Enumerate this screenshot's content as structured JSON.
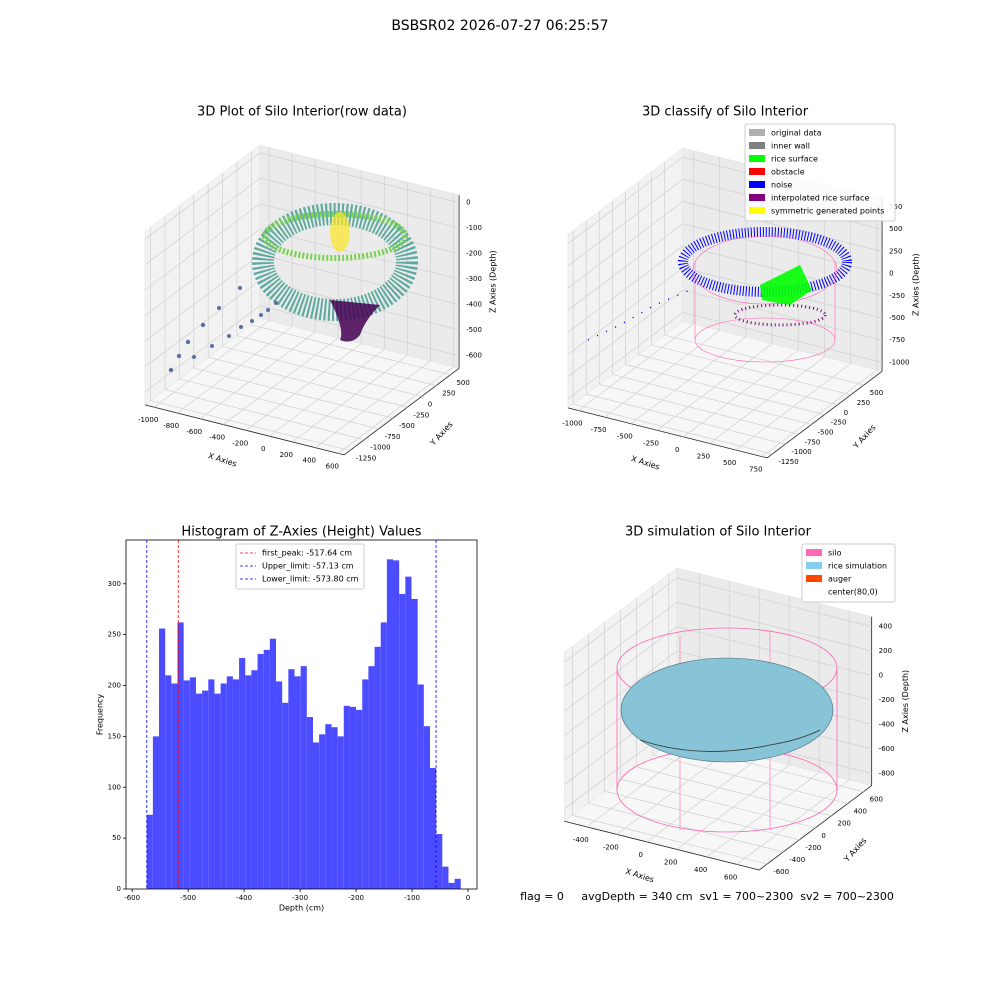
{
  "suptitle": "BSBSR02 2026-07-27 06:25:57",
  "footer": "flag = 0     avgDepth = 340 cm  sv1 = 700~2300  sv2 = 700~2300",
  "chart_data": [
    {
      "type": "scatter3d",
      "title": "3D Plot of Silo Interior(row data)",
      "xlabel": "X Axies",
      "ylabel": "Y Axies",
      "zlabel": "Z Axies (Depth)",
      "xlim": [
        -1080,
        650
      ],
      "xticks": [
        -1000,
        -800,
        -600,
        -400,
        -200,
        0,
        200,
        400,
        600
      ],
      "ylim": [
        -1350,
        650
      ],
      "yticks": [
        -1250,
        -1000,
        -750,
        -500,
        -250,
        0,
        250,
        500
      ],
      "zlim": [
        -650,
        30
      ],
      "zticks": [
        -600,
        -500,
        -400,
        -300,
        -200,
        -100,
        0
      ]
    },
    {
      "type": "scatter3d",
      "title": "3D classify of Silo Interior",
      "xlabel": "X Axies",
      "ylabel": "Y Axies",
      "zlabel": "Z Axies (Depth)",
      "xlim": [
        -1100,
        800
      ],
      "xticks": [
        -1000,
        -750,
        -500,
        -250,
        0,
        250,
        500,
        750
      ],
      "ylim": [
        -1350,
        850
      ],
      "yticks": [
        -1250,
        -1000,
        -750,
        -500,
        -250,
        0,
        250,
        500
      ],
      "zlim": [
        -1100,
        850
      ],
      "zticks": [
        -1000,
        -750,
        -500,
        -250,
        0,
        250,
        500,
        750
      ],
      "legend": [
        {
          "name": "original data",
          "color": "#b0b0b0"
        },
        {
          "name": "inner wall",
          "color": "#808080"
        },
        {
          "name": "rice surface",
          "color": "#00ff00"
        },
        {
          "name": "obstacle",
          "color": "#ff0000"
        },
        {
          "name": "noise",
          "color": "#0000ff"
        },
        {
          "name": "interpolated rice surface",
          "color": "#800080"
        },
        {
          "name": "symmetric generated points",
          "color": "#ffff00"
        }
      ]
    },
    {
      "type": "histogram",
      "title": "Histogram of Z-Axies (Height) Values",
      "xlabel": "Depth (cm)",
      "ylabel": "Frequency",
      "color": "#4b4bff",
      "bins": [
        -574,
        -563,
        -552,
        -541,
        -530,
        -519,
        -508,
        -497,
        -486,
        -475,
        -464,
        -453,
        -442,
        -431,
        -420,
        -409,
        -398,
        -387,
        -376,
        -365,
        -354,
        -343,
        -332,
        -321,
        -310,
        -299,
        -288,
        -277,
        -266,
        -255,
        -244,
        -233,
        -222,
        -211,
        -200,
        -189,
        -178,
        -167,
        -156,
        -145,
        -134,
        -123,
        -112,
        -101,
        -90,
        -79,
        -68,
        -57,
        -46,
        -35,
        -24,
        -13
      ],
      "values": [
        73,
        150,
        256,
        210,
        202,
        262,
        205,
        208,
        192,
        195,
        206,
        192,
        202,
        209,
        206,
        227,
        210,
        215,
        231,
        235,
        246,
        204,
        183,
        216,
        209,
        219,
        169,
        144,
        152,
        162,
        159,
        150,
        180,
        179,
        176,
        206,
        219,
        238,
        262,
        324,
        323,
        290,
        307,
        285,
        201,
        160,
        119,
        54,
        22,
        6,
        10
      ],
      "xlim": [
        -611,
        16
      ],
      "xticks": [
        -600,
        -500,
        -400,
        -300,
        -200,
        -100,
        0
      ],
      "ylim": [
        0,
        343
      ],
      "yticks": [
        0,
        50,
        100,
        150,
        200,
        250,
        300
      ],
      "vlines": [
        {
          "name": "first_peak: -517.64 cm",
          "value": -517.64,
          "color": "#ff0000"
        },
        {
          "name": "Upper_limit: -57.13 cm",
          "value": -57.13,
          "color": "#0000ff"
        },
        {
          "name": "Lower_limit: -573.80 cm",
          "value": -573.8,
          "color": "#0000ff"
        }
      ]
    },
    {
      "type": "scatter3d",
      "title": "3D simulation of Silo Interior",
      "xlabel": "X Axies",
      "ylabel": "Y Axies",
      "zlabel": "Z Axies (Depth)",
      "xlim": [
        -550,
        750
      ],
      "xticks": [
        -400,
        -200,
        0,
        200,
        400,
        600
      ],
      "ylim": [
        -700,
        700
      ],
      "yticks": [
        -600,
        -400,
        -200,
        0,
        200,
        400,
        600
      ],
      "zlim": [
        -900,
        480
      ],
      "zticks": [
        -800,
        -600,
        -400,
        -200,
        0,
        200,
        400
      ],
      "legend": [
        {
          "name": "silo",
          "color": "#ff69b4"
        },
        {
          "name": "rice simulation",
          "color": "#87ceeb"
        },
        {
          "name": "auger",
          "color": "#ff4500"
        },
        {
          "name": "center(80,0)",
          "color": "#ffffff"
        }
      ]
    }
  ]
}
